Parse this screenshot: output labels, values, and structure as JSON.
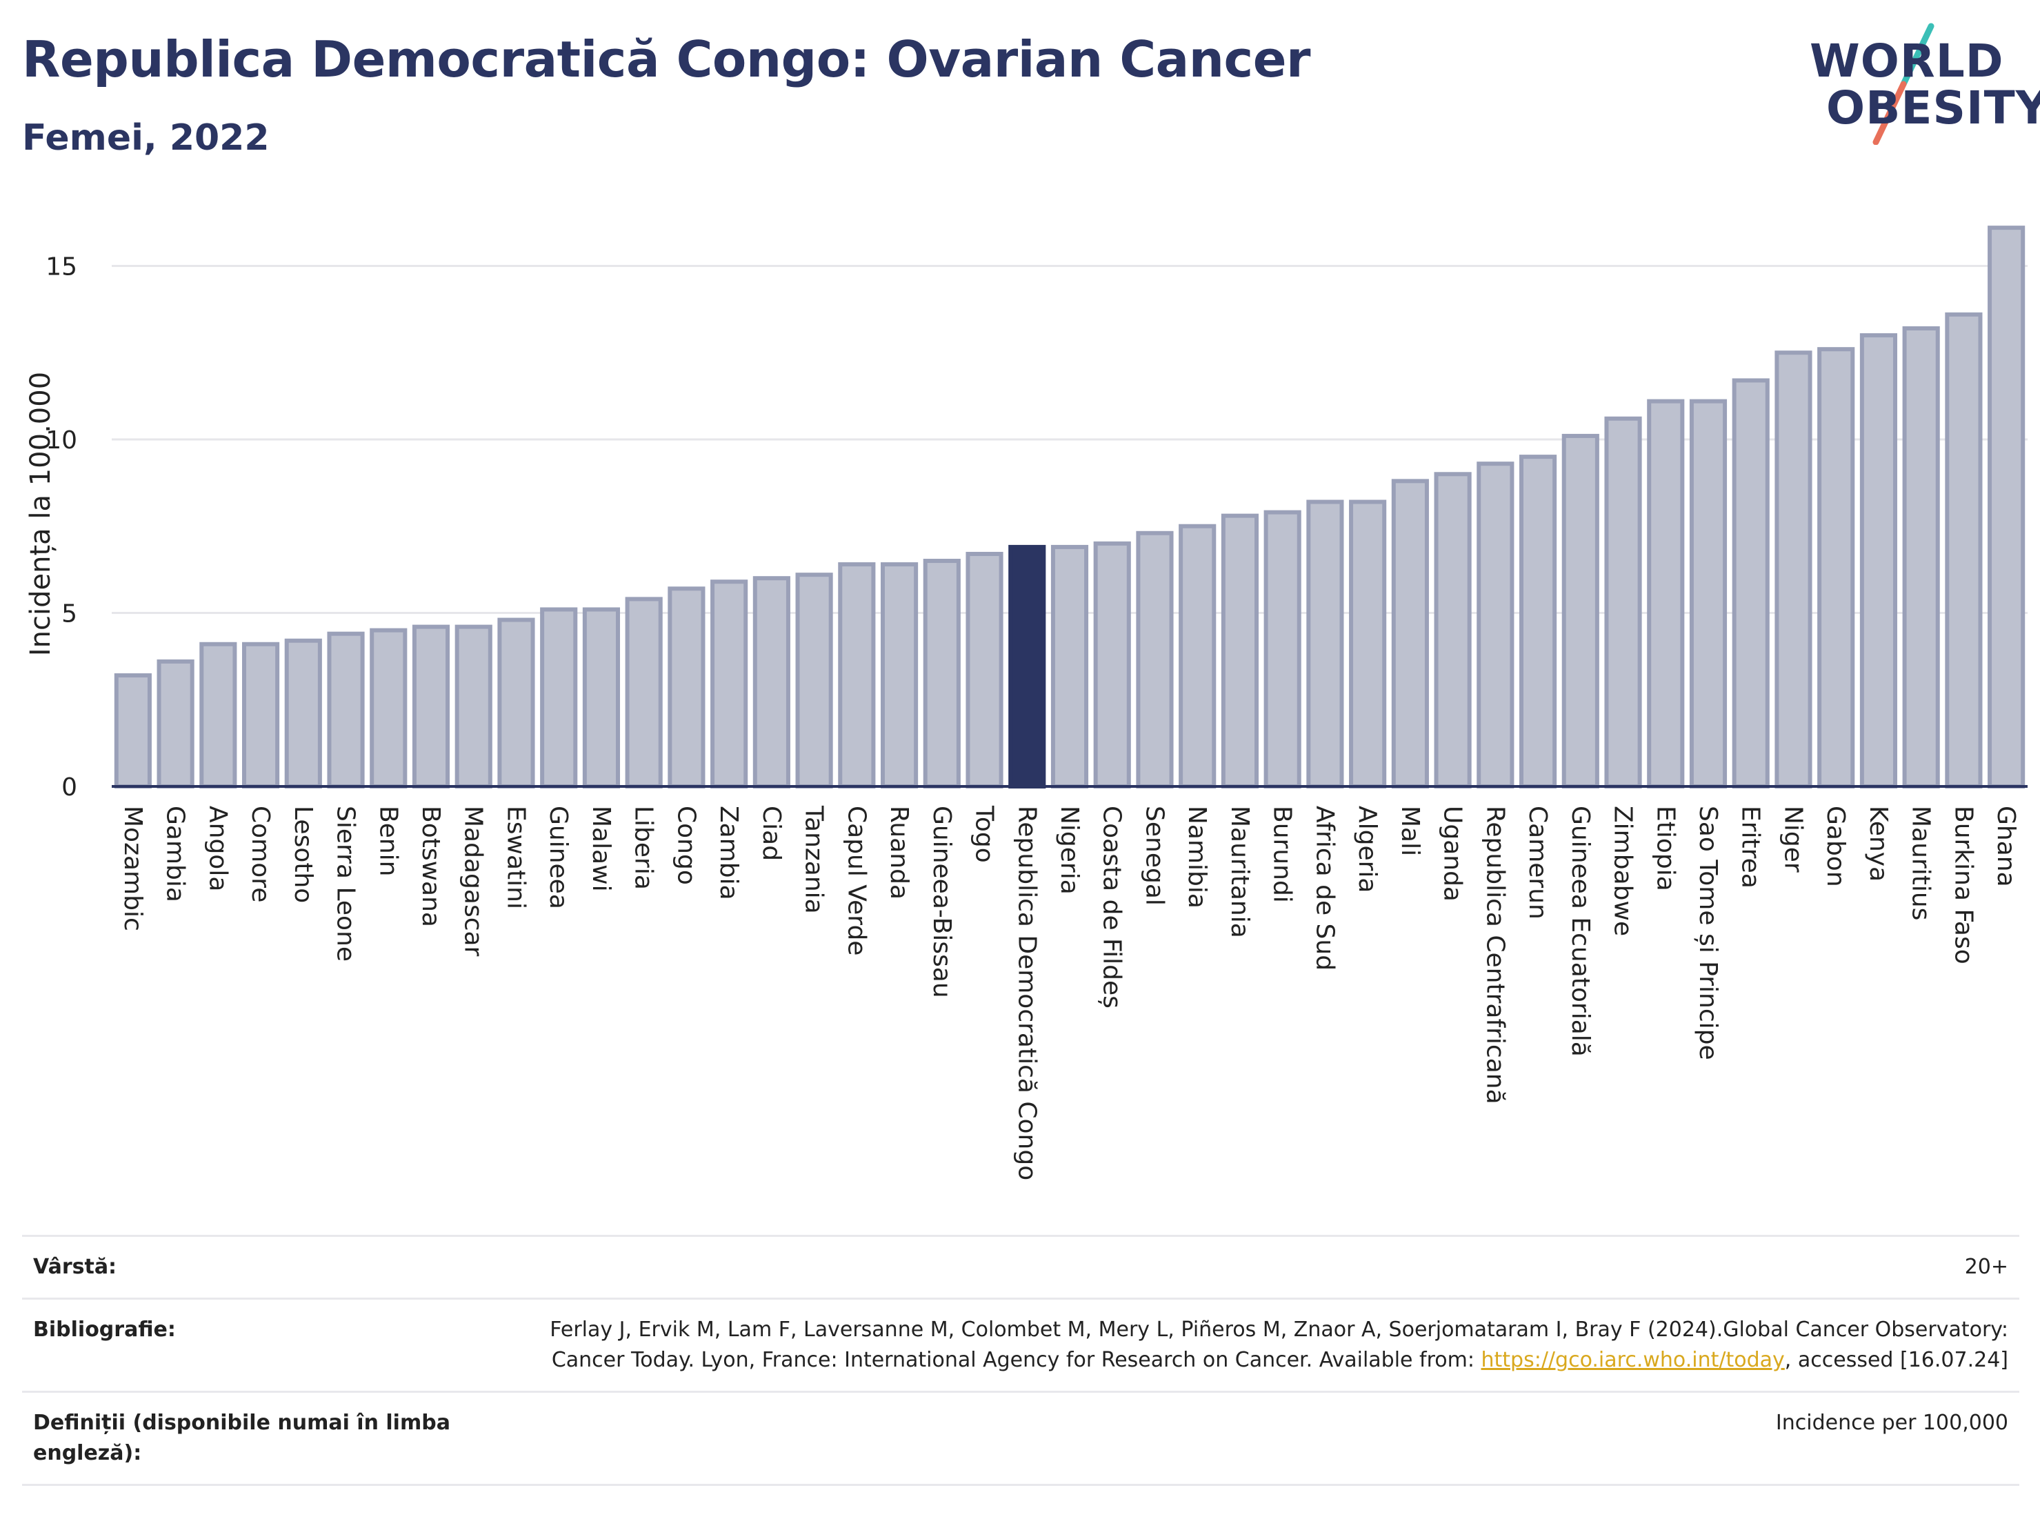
{
  "header": {
    "title": "Republica Democratică Congo: Ovarian Cancer",
    "subtitle": "Femei, 2022"
  },
  "logo": {
    "line1": "WORLD",
    "line2": "OBESITY",
    "colors": {
      "text": "#2b3562",
      "slash_top": "#3bbfb7",
      "slash_bottom": "#e8705a"
    }
  },
  "colors": {
    "bar": "#bdc1cf",
    "bar_outline": "#9aa0b8",
    "highlight": "#2b3562",
    "grid": "#e6e6ea",
    "axis": "#2b3562"
  },
  "chart_data": {
    "type": "bar",
    "ylabel": "Incidența la 100.000",
    "ylim": [
      0,
      16.5
    ],
    "yticks": [
      0,
      5,
      10,
      15
    ],
    "grid": true,
    "highlight": "Republica Democratică Congo",
    "categories": [
      "Mozambic",
      "Gambia",
      "Angola",
      "Comore",
      "Lesotho",
      "Sierra Leone",
      "Benin",
      "Botswana",
      "Madagascar",
      "Eswatini",
      "Guineea",
      "Malawi",
      "Liberia",
      "Congo",
      "Zambia",
      "Ciad",
      "Tanzania",
      "Capul Verde",
      "Ruanda",
      "Guineea-Bissau",
      "Togo",
      "Republica Democratică Congo",
      "Nigeria",
      "Coasta de Fildeș",
      "Senegal",
      "Namibia",
      "Mauritania",
      "Burundi",
      "Africa de Sud",
      "Algeria",
      "Mali",
      "Uganda",
      "Republica Centrafricană",
      "Camerun",
      "Guineea Ecuatorială",
      "Zimbabwe",
      "Etiopia",
      "Sao Tome și Principe",
      "Eritrea",
      "Niger",
      "Gabon",
      "Kenya",
      "Mauritius",
      "Burkina Faso",
      "Ghana"
    ],
    "values": [
      3.2,
      3.6,
      4.1,
      4.1,
      4.2,
      4.4,
      4.5,
      4.6,
      4.6,
      4.8,
      5.1,
      5.1,
      5.4,
      5.7,
      5.9,
      6.0,
      6.1,
      6.4,
      6.4,
      6.5,
      6.7,
      6.9,
      6.9,
      7.0,
      7.3,
      7.5,
      7.8,
      7.9,
      8.2,
      8.2,
      8.8,
      9.0,
      9.3,
      9.5,
      10.1,
      10.6,
      11.1,
      11.1,
      11.7,
      12.5,
      12.6,
      13.0,
      13.2,
      13.6,
      16.1
    ]
  },
  "info": [
    {
      "key": "Vârstă:",
      "value": "20+"
    },
    {
      "key": "Bibliografie:",
      "value_before": "Ferlay J, Ervik M, Lam F, Laversanne M, Colombet M, Mery L, Piñeros M, Znaor A, Soerjomataram I, Bray F (2024).Global Cancer Observatory: Cancer Today. Lyon, France: International Agency for Research on Cancer. Available from: ",
      "link": "https://gco.iarc.who.int/today",
      "value_after": ", accessed [16.07.24]"
    },
    {
      "key": "Definiții (disponibile numai în limba engleză):",
      "value": "Incidence per 100,000"
    }
  ]
}
